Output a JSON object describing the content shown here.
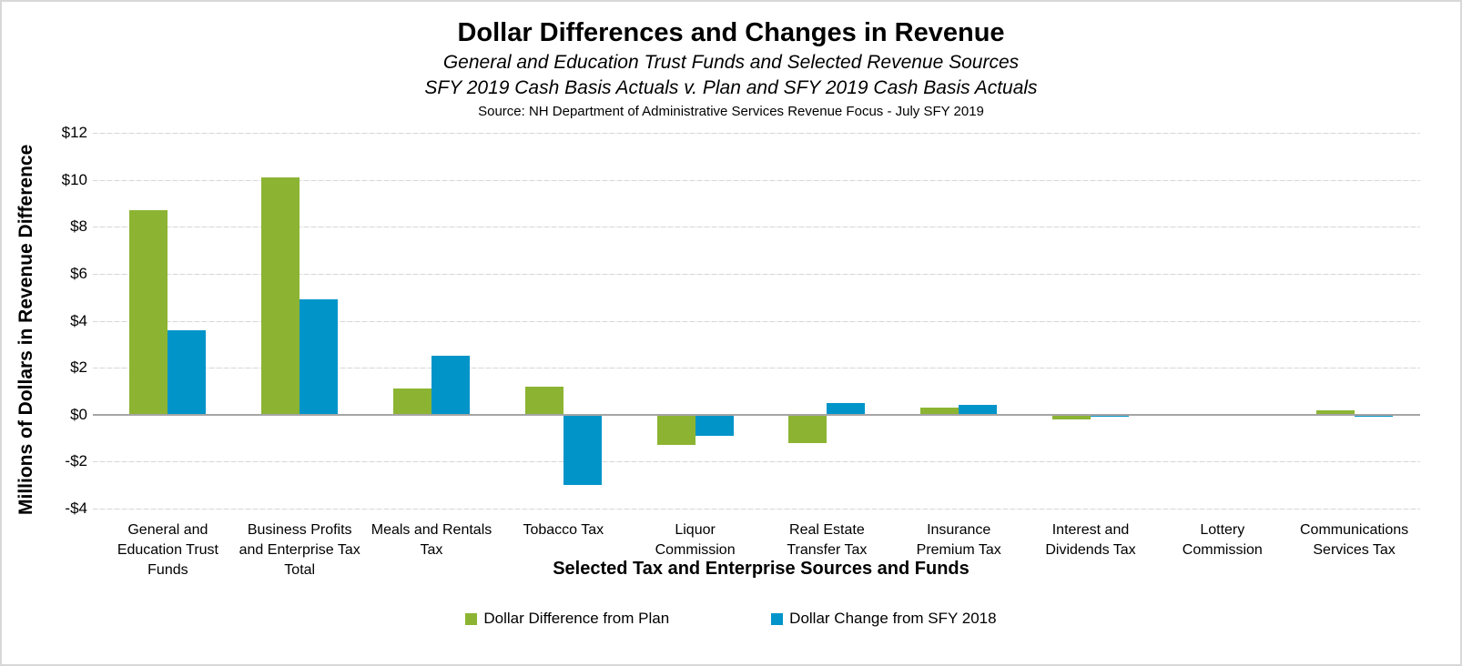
{
  "header": {
    "title": "Dollar Differences and Changes in Revenue",
    "subtitle1": "General and Education Trust Funds and Selected Revenue Sources",
    "subtitle2": "SFY 2019 Cash Basis Actuals v. Plan and SFY 2019 Cash Basis Actuals",
    "source": "Source: NH Department of Administrative Services Revenue Focus - July SFY 2019"
  },
  "chart_data": {
    "type": "bar",
    "title": "Dollar Differences and Changes in Revenue",
    "xlabel": "Selected Tax and Enterprise Sources and Funds",
    "ylabel": "Millions of Dollars in Revenue Difference",
    "ylim": [
      -4,
      12
    ],
    "ytick_step": 2,
    "ytick_labels": [
      "$12",
      "$10",
      "$8",
      "$6",
      "$4",
      "$2",
      "$0",
      "-$2",
      "-$4"
    ],
    "grid": true,
    "legend_position": "bottom",
    "categories": [
      "General and Education Trust Funds",
      "Business Profits and Enterprise Tax Total",
      "Meals and Rentals Tax",
      "Tobacco Tax",
      "Liquor Commission",
      "Real Estate Transfer Tax",
      "Insurance Premium Tax",
      "Interest and Dividends Tax",
      "Lottery Commission",
      "Communications Services Tax"
    ],
    "series": [
      {
        "name": "Dollar Difference from Plan",
        "color": "#8CB432",
        "values": [
          8.7,
          10.1,
          1.1,
          1.2,
          -1.3,
          -1.2,
          0.3,
          -0.2,
          0,
          0.2
        ]
      },
      {
        "name": "Dollar Change from SFY 2018",
        "color": "#0094C9",
        "values": [
          3.6,
          4.9,
          2.5,
          -3.0,
          -0.9,
          0.5,
          0.4,
          -0.1,
          0,
          -0.1
        ]
      }
    ],
    "axis_colors": {
      "gridline": "#D6D6D6",
      "zero_axis": "#A5A5A5",
      "text": "#000000"
    }
  }
}
